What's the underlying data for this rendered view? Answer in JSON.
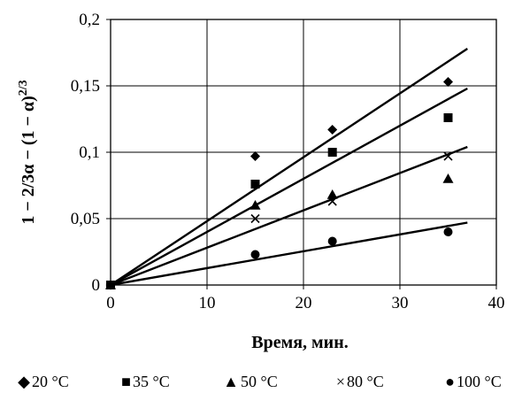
{
  "chart_data": {
    "type": "scatter",
    "xlabel": "Время, мин.",
    "ylabel": "1 − 2/3α − (1 − α)",
    "ylabel_sup": "2/3",
    "xlim": [
      0,
      40
    ],
    "ylim": [
      0,
      0.2
    ],
    "x_ticks": [
      0,
      10,
      20,
      30,
      40
    ],
    "x_tick_labels": [
      "0",
      "10",
      "20",
      "30",
      "40"
    ],
    "y_ticks": [
      0,
      0.05,
      0.1,
      0.15,
      0.2
    ],
    "y_tick_labels": [
      "0",
      "0,05",
      "0,1",
      "0,15",
      "0,2"
    ],
    "grid": true,
    "legend_position": "bottom",
    "series": [
      {
        "name": "20 °C",
        "marker": "diamond",
        "legend_glyph": "◆",
        "x": [
          0,
          15,
          23,
          35
        ],
        "y": [
          0,
          0.097,
          0.117,
          0.153
        ],
        "trendline": {
          "x": [
            0,
            37
          ],
          "y": [
            0,
            0.178
          ]
        }
      },
      {
        "name": "35 °C",
        "marker": "square",
        "legend_glyph": "■",
        "x": [
          0,
          15,
          23,
          35
        ],
        "y": [
          0,
          0.076,
          0.1,
          0.126
        ],
        "trendline": {
          "x": [
            0,
            37
          ],
          "y": [
            0,
            0.148
          ]
        }
      },
      {
        "name": "50 °C",
        "marker": "triangle",
        "legend_glyph": "▲",
        "x": [
          0,
          15,
          23,
          35
        ],
        "y": [
          0,
          0.06,
          0.068,
          0.08
        ],
        "trendline": {
          "x": [
            0,
            37
          ],
          "y": [
            0,
            0.104
          ]
        }
      },
      {
        "name": "80 °C",
        "marker": "cross",
        "legend_glyph": "×",
        "x": [
          0,
          15,
          23,
          35
        ],
        "y": [
          0,
          0.05,
          0.063,
          0.097
        ],
        "trendline": null
      },
      {
        "name": "100 °C",
        "marker": "circle",
        "legend_glyph": "●",
        "x": [
          0,
          15,
          23,
          35
        ],
        "y": [
          0,
          0.023,
          0.033,
          0.04
        ],
        "trendline": {
          "x": [
            0,
            37
          ],
          "y": [
            0,
            0.047
          ]
        }
      }
    ]
  }
}
